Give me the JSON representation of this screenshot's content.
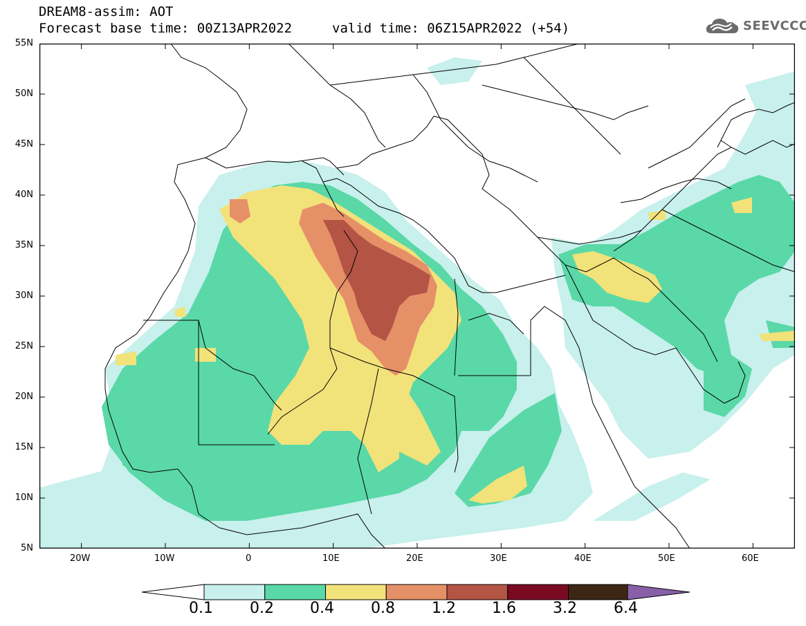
{
  "header": {
    "title_line1": "DREAM8-assim: AOT",
    "title_line2": "Forecast base time: 00Z13APR2022",
    "valid_time": "valid time: 06Z15APR2022 (+54)"
  },
  "logo": {
    "text": "SEEVCCC",
    "icon": "cloud-icon",
    "color": "#6b6b6b"
  },
  "map": {
    "variable": "AOT",
    "lat_range": [
      5,
      55
    ],
    "lon_range": [
      -25,
      65
    ],
    "lat_labels": [
      "55N",
      "50N",
      "45N",
      "40N",
      "35N",
      "30N",
      "25N",
      "20N",
      "15N",
      "10N",
      "5N"
    ],
    "lon_labels": [
      "20W",
      "10W",
      "0",
      "10E",
      "20E",
      "30E",
      "40E",
      "50E",
      "60E"
    ]
  },
  "colorbar": {
    "labels": [
      "0.1",
      "0.2",
      "0.4",
      "0.8",
      "1.2",
      "1.6",
      "3.2",
      "6.4"
    ],
    "colors": [
      "#c8f0ec",
      "#5ad8a8",
      "#f2e27a",
      "#e69068",
      "#b45444",
      "#7a0a22",
      "#3e2614",
      "#8860a8"
    ]
  }
}
